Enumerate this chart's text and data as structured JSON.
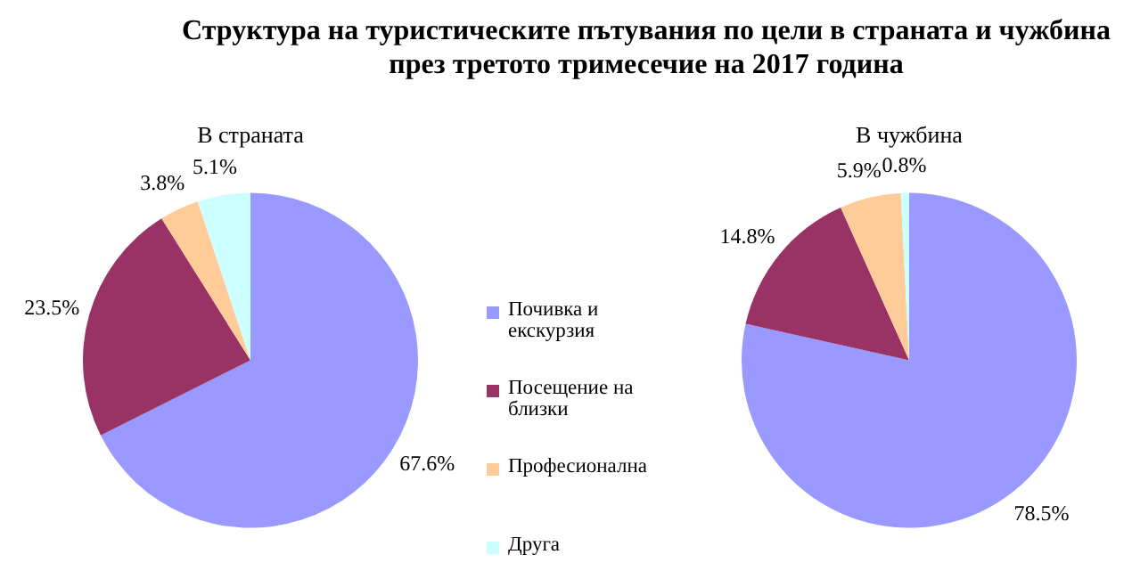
{
  "chart_data": [
    {
      "type": "pie",
      "title": "Структура на туристическите пътувания по цели в страната и чужбина\nпрез третото тримесечие на 2017 година",
      "subtitle": "В страната",
      "categories": [
        "Почивка и екскурзия",
        "Посещение на близки",
        "Професионална",
        "Друга"
      ],
      "values": [
        67.6,
        23.5,
        3.8,
        5.1
      ],
      "colors": [
        "#9999ff",
        "#993366",
        "#ffcc99",
        "#ccffff"
      ],
      "value_labels": [
        "67.6%",
        "23.5%",
        "3.8%",
        "5.1%"
      ],
      "legend": "right"
    },
    {
      "type": "pie",
      "subtitle": "В чужбина",
      "values": [
        78.5,
        14.8,
        5.9,
        0.8
      ],
      "colors": [
        "#9999ff",
        "#993366",
        "#ffcc99",
        "#ccffff"
      ],
      "value_labels": [
        "78.5%",
        "14.8%",
        "5.9%",
        "0.8%"
      ],
      "legend": false
    }
  ]
}
